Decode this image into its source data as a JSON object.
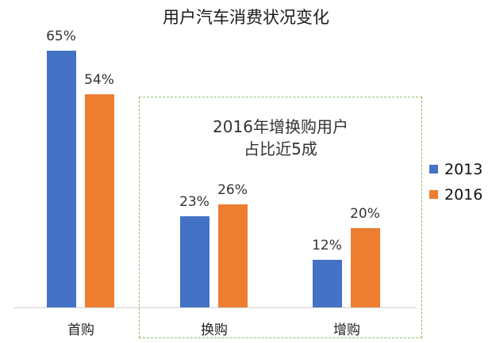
{
  "chart_data": {
    "type": "bar",
    "title": "用户汽车消费状况变化",
    "categories": [
      "首购",
      "换购",
      "增购"
    ],
    "series": [
      {
        "name": "2013",
        "color": "#4472c4",
        "values": [
          65,
          23,
          12
        ],
        "labels": [
          "65%",
          "23%",
          "12%"
        ]
      },
      {
        "name": "2016",
        "color": "#ed7d31",
        "values": [
          54,
          26,
          20
        ],
        "labels": [
          "54%",
          "26%",
          "20%"
        ]
      }
    ],
    "xlabel": "",
    "ylabel": "",
    "ylim": [
      0,
      65
    ],
    "grid": false,
    "legend_position": "right",
    "annotation": {
      "line1": "2016年增换购用户",
      "line2": "占比近5成",
      "box_style": "dashed",
      "box_color": "#8dbb6a",
      "covers_categories": [
        "换购",
        "增购"
      ]
    }
  }
}
